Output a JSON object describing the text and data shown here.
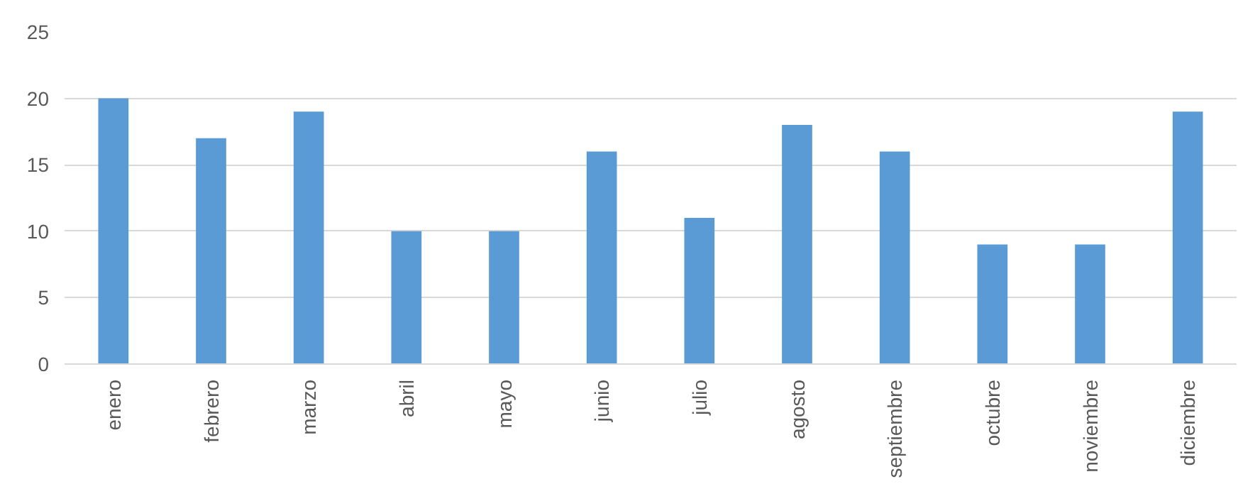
{
  "chart_data": {
    "type": "bar",
    "categories": [
      "enero",
      "febrero",
      "marzo",
      "abril",
      "mayo",
      "junio",
      "julio",
      "agosto",
      "septiembre",
      "octubre",
      "noviembre",
      "diciembre"
    ],
    "values": [
      20,
      17,
      19,
      10,
      10,
      16,
      11,
      18,
      16,
      9,
      9,
      19
    ],
    "color": "#5b9bd5",
    "ylim": [
      0,
      25
    ],
    "yticks": [
      0,
      5,
      10,
      15,
      20,
      25
    ],
    "grid": "y"
  }
}
